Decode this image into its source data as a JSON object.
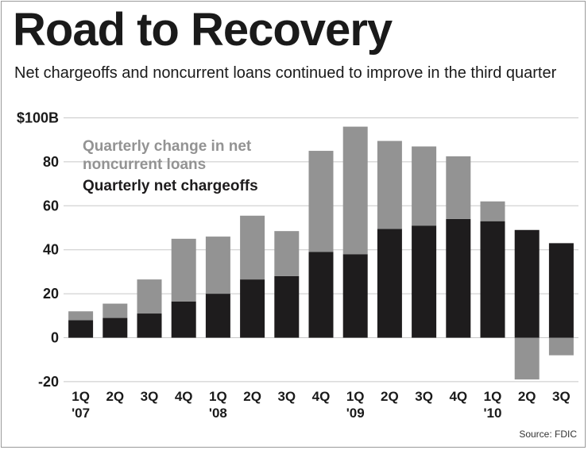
{
  "title": "Road to Recovery",
  "subtitle": "Net chargeoffs and noncurrent loans continued to improve in the third quarter",
  "source": "Source: FDIC",
  "colors": {
    "chargeoffs": "#1e1c1d",
    "noncurrent": "#939393",
    "grid": "#c8c8c8",
    "text": "#1a1a1a"
  },
  "chart_data": {
    "type": "bar",
    "stacked": true,
    "categories": [
      "1Q '07",
      "2Q",
      "3Q",
      "4Q",
      "1Q '08",
      "2Q",
      "3Q",
      "4Q",
      "1Q '09",
      "2Q",
      "3Q",
      "4Q",
      "1Q '10",
      "2Q",
      "3Q"
    ],
    "category_lines": [
      [
        "1Q",
        "'07"
      ],
      [
        "2Q"
      ],
      [
        "3Q"
      ],
      [
        "4Q"
      ],
      [
        "1Q",
        "'08"
      ],
      [
        "2Q"
      ],
      [
        "3Q"
      ],
      [
        "4Q"
      ],
      [
        "1Q",
        "'09"
      ],
      [
        "2Q"
      ],
      [
        "3Q"
      ],
      [
        "4Q"
      ],
      [
        "1Q",
        "'10"
      ],
      [
        "2Q"
      ],
      [
        "3Q"
      ]
    ],
    "series": [
      {
        "name": "Quarterly net chargeoffs",
        "values": [
          8,
          9,
          11,
          16.5,
          20,
          26.5,
          28,
          39,
          38,
          49.5,
          51,
          54,
          53,
          49,
          43
        ]
      },
      {
        "name": "Quarterly change in net noncurrent loans",
        "values": [
          4,
          6.5,
          15.5,
          28.5,
          26,
          29,
          20.5,
          46,
          58,
          40,
          36,
          28.5,
          9,
          -19,
          -8
        ]
      }
    ],
    "yticks": [
      -20,
      0,
      20,
      40,
      60,
      80
    ],
    "ytick_labels": [
      "-20",
      "0",
      "20",
      "40",
      "60",
      "80"
    ],
    "ytop_label": "$100B",
    "ylim": [
      -20,
      100
    ],
    "grid": true,
    "legend": "top-left",
    "legend_lines": [
      [
        "Quarterly change in net",
        "noncurrent loans"
      ],
      [
        "Quarterly net chargeoffs"
      ]
    ]
  }
}
